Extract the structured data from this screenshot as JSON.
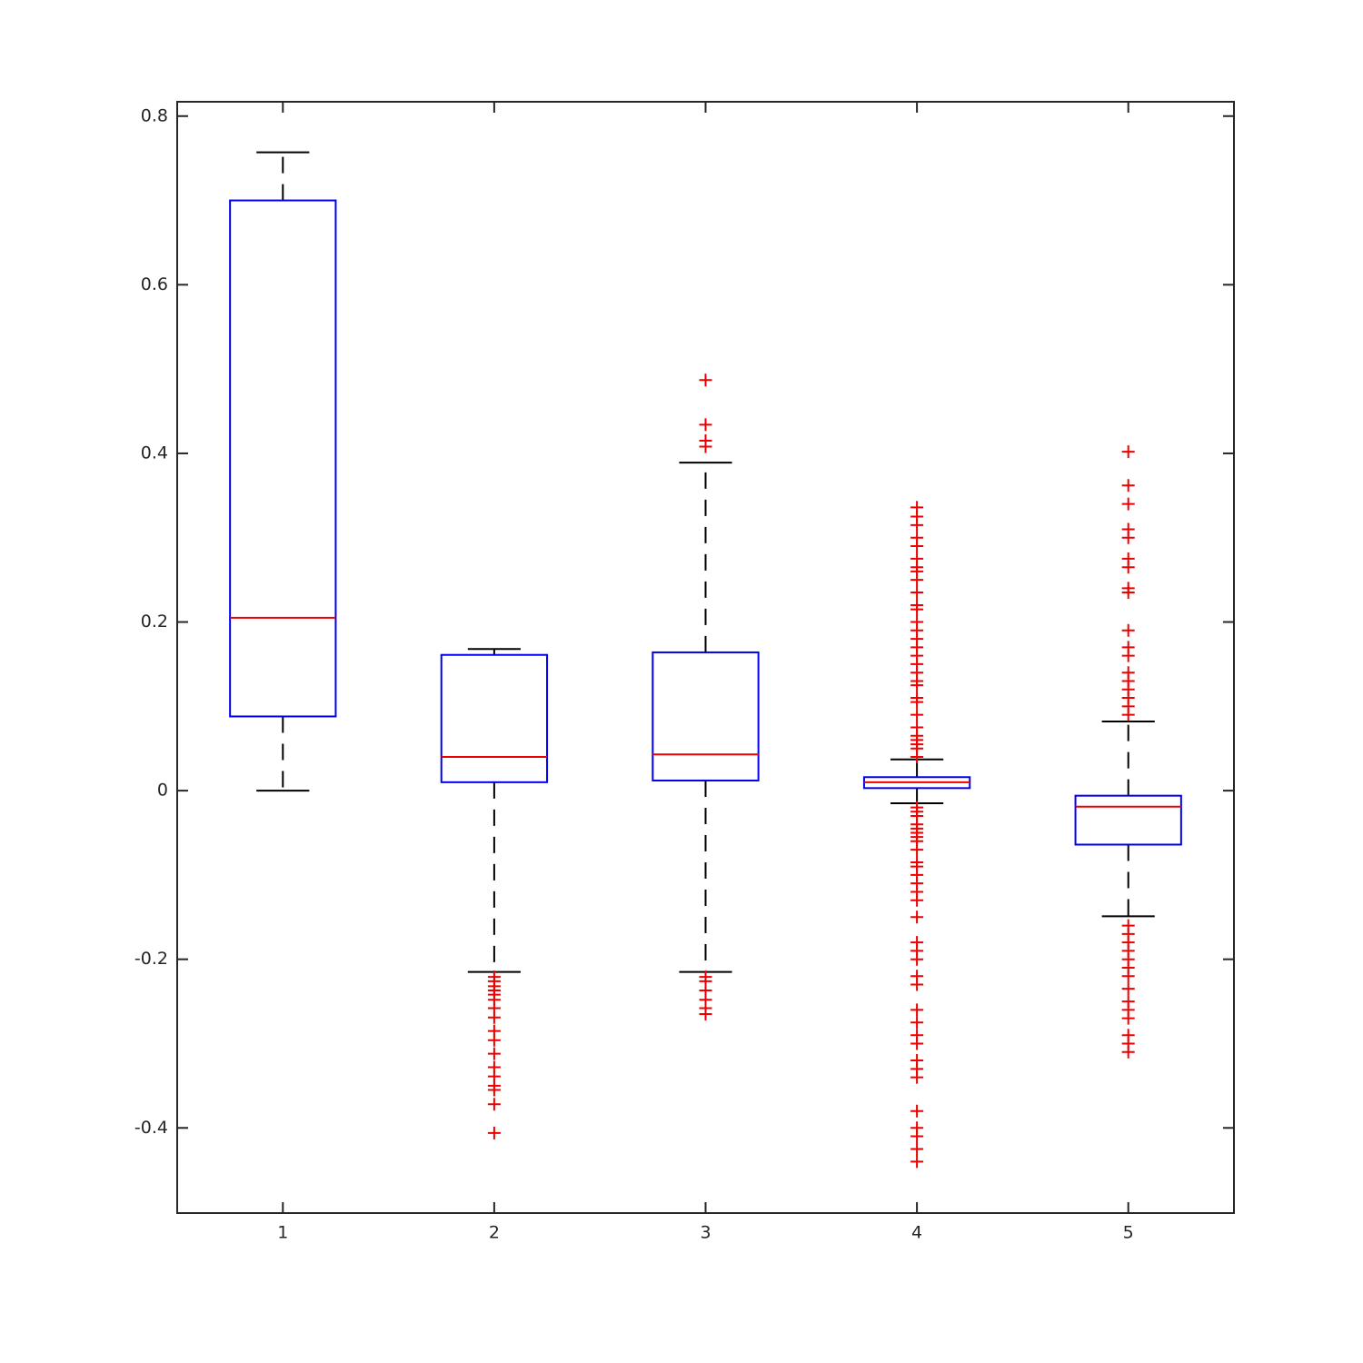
{
  "chart_data": {
    "type": "box",
    "categories": [
      "1",
      "2",
      "3",
      "4",
      "5"
    ],
    "boxes": [
      {
        "whisker_low": 0,
        "q1": 0.088,
        "median": 0.205,
        "q3": 0.7,
        "whisker_high": 0.757,
        "outliers": []
      },
      {
        "whisker_low": -0.215,
        "q1": 0.01,
        "median": 0.04,
        "q3": 0.161,
        "whisker_high": 0.168,
        "outliers": [
          -0.221,
          -0.226,
          -0.232,
          -0.237,
          -0.242,
          -0.248,
          -0.258,
          -0.269,
          -0.285,
          -0.296,
          -0.312,
          -0.328,
          -0.339,
          -0.35,
          -0.355,
          -0.372,
          -0.406
        ]
      },
      {
        "whisker_low": -0.215,
        "q1": 0.012,
        "median": 0.043,
        "q3": 0.164,
        "whisker_high": 0.389,
        "outliers": [
          0.487,
          0.434,
          0.415,
          0.408,
          -0.221,
          -0.226,
          -0.237,
          -0.248,
          -0.258,
          -0.265
        ]
      },
      {
        "whisker_low": -0.015,
        "q1": 0.003,
        "median": 0.01,
        "q3": 0.016,
        "whisker_high": 0.037,
        "outliers": [
          0.336,
          0.325,
          0.315,
          0.3,
          0.29,
          0.275,
          0.265,
          0.26,
          0.25,
          0.235,
          0.22,
          0.215,
          0.2,
          0.19,
          0.18,
          0.17,
          0.16,
          0.15,
          0.14,
          0.13,
          0.125,
          0.11,
          0.105,
          0.09,
          0.075,
          0.065,
          0.06,
          0.055,
          0.05,
          0.04,
          -0.02,
          -0.025,
          -0.03,
          -0.04,
          -0.045,
          -0.05,
          -0.055,
          -0.06,
          -0.07,
          -0.085,
          -0.09,
          -0.1,
          -0.11,
          -0.12,
          -0.13,
          -0.15,
          -0.18,
          -0.19,
          -0.2,
          -0.22,
          -0.23,
          -0.26,
          -0.275,
          -0.29,
          -0.3,
          -0.32,
          -0.33,
          -0.34,
          -0.38,
          -0.4,
          -0.41,
          -0.425,
          -0.44
        ]
      },
      {
        "whisker_low": -0.149,
        "q1": -0.064,
        "median": -0.019,
        "q3": -0.006,
        "whisker_high": 0.082,
        "outliers": [
          0.402,
          0.362,
          0.34,
          0.31,
          0.3,
          0.275,
          0.265,
          0.24,
          0.235,
          0.19,
          0.17,
          0.16,
          0.14,
          0.13,
          0.12,
          0.11,
          0.1,
          0.09,
          -0.16,
          -0.17,
          -0.18,
          -0.19,
          -0.2,
          -0.21,
          -0.22,
          -0.235,
          -0.25,
          -0.26,
          -0.27,
          -0.29,
          -0.3,
          -0.31
        ]
      }
    ],
    "box_color": "#0000ee",
    "median_color": "#ee0000",
    "whisker_color": "#000000",
    "outlier_color": "#ee0000",
    "ylim": [
      -0.501,
      0.817
    ],
    "yticks": [
      -0.4,
      -0.2,
      0,
      0.2,
      0.4,
      0.6,
      0.8
    ]
  }
}
